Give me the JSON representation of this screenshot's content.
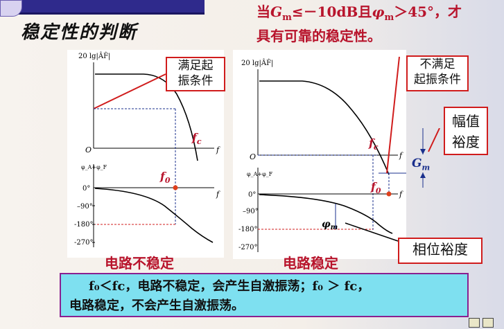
{
  "title": "稳定性的判断",
  "condition": {
    "line1_pre": "当",
    "Gm": "G",
    "Gm_sub": "m",
    "line1_mid": "≤－10dB且",
    "phi": "φ",
    "phi_sub": "m",
    "line1_post": "＞45°，才",
    "line2": "具有可靠的稳定性。"
  },
  "left_plot": {
    "ylabel_mag": "20 lg|ÂḞ|",
    "ylabel_phase": "φ_A+φ_F",
    "origin": "O",
    "f_axis": "f",
    "fc": "f",
    "fc_sub": "c",
    "f0": "f",
    "f0_sub": "0",
    "ticks": [
      "0°",
      "–90°",
      "-180°",
      "-270°"
    ],
    "callout": [
      "满足起",
      "振条件"
    ],
    "caption": "电路不稳定"
  },
  "right_plot": {
    "ylabel_mag": "20 lg|ÂḞ|",
    "ylabel_phase": "φ_A+φ_F",
    "origin": "O",
    "f_axis": "f",
    "fc": "f",
    "fc_sub": "c",
    "f0": "f",
    "f0_sub": "0",
    "ticks": [
      "0°",
      "–90°",
      "-180°",
      "-270°"
    ],
    "Gm_label": "G",
    "Gm_sub": "m",
    "phim_label": "φ",
    "phim_sub": "m",
    "callout_top": [
      "不满足",
      "起振条件"
    ],
    "callout_gain": [
      "幅值",
      "裕度"
    ],
    "callout_phase": "相位裕度",
    "caption": "电路稳定"
  },
  "conclusion": {
    "line1": "f₀＜fc，电路不稳定，会产生自激振荡；f₀ ＞ fc，",
    "line2": "电路稳定，不会产生自激振荡。"
  },
  "colors": {
    "red": "#d01c1c",
    "dark_red": "#b8142c",
    "blue": "#1a2f8c",
    "cyan": "#7ee0f0"
  }
}
